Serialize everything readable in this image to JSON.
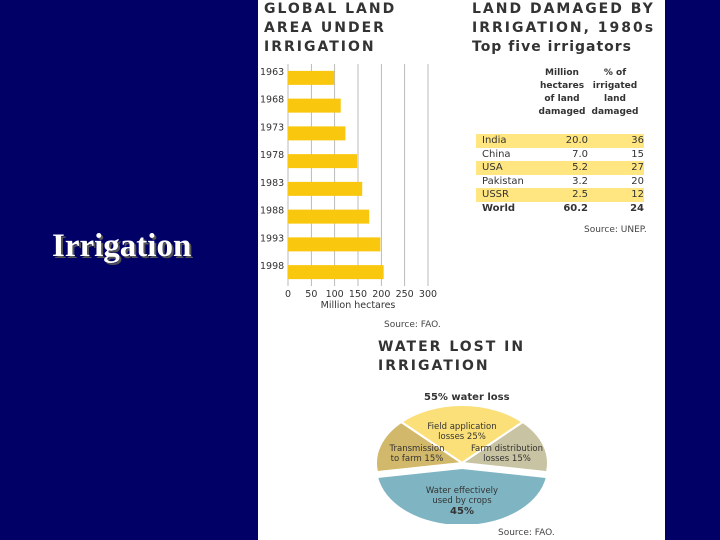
{
  "slide_title": "Irrigation",
  "chart_data": [
    {
      "type": "bar",
      "title": "GLOBAL LAND\nAREA UNDER\nIRRIGATION",
      "orientation": "horizontal",
      "categories": [
        "1963",
        "1968",
        "1973",
        "1978",
        "1983",
        "1988",
        "1993",
        "1998"
      ],
      "values": [
        99,
        113,
        123,
        148,
        159,
        174,
        198,
        205
      ],
      "xlabel": "Million hectares",
      "xlim": [
        0,
        300
      ],
      "xticks": [
        "0",
        "50",
        "100",
        "150",
        "200",
        "250",
        "300"
      ],
      "grid": true,
      "source": "Source: FAO.",
      "colors": {
        "bar": "#f9c80e",
        "grid": "#aaaaaa"
      }
    },
    {
      "type": "table",
      "title": "LAND DAMAGED BY\nIRRIGATION, 1980s",
      "subtitle": "Top five irrigators",
      "columns": [
        "",
        "Million\nhectares\nof land\ndamaged",
        "% of\nirrigated\nland\ndamaged"
      ],
      "rows": [
        {
          "country": "India",
          "hectares": "20.0",
          "percent": "36"
        },
        {
          "country": "China",
          "hectares": "7.0",
          "percent": "15"
        },
        {
          "country": "USA",
          "hectares": "5.2",
          "percent": "27"
        },
        {
          "country": "Pakistan",
          "hectares": "3.2",
          "percent": "20"
        },
        {
          "country": "USSR",
          "hectares": "2.5",
          "percent": "12"
        },
        {
          "country": "World",
          "hectares": "60.2",
          "percent": "24"
        }
      ],
      "source": "Source: UNEP."
    },
    {
      "type": "pie",
      "title": "WATER LOST IN\nIRRIGATION",
      "annotation": "55% water loss",
      "slices": [
        {
          "label": "Field application\nlosses 25%",
          "value": 25,
          "color": "#fbe07a"
        },
        {
          "label": "Farm distribution\nlosses 15%",
          "value": 15,
          "color": "#c8c3a2"
        },
        {
          "label": "Water effectively\nused by crops",
          "value_label": "45%",
          "value": 45,
          "color": "#7fb5c3"
        },
        {
          "label": "Transmission\nto farm 15%",
          "value": 15,
          "color": "#d2b86a"
        }
      ],
      "source": "Source: FAO."
    }
  ]
}
